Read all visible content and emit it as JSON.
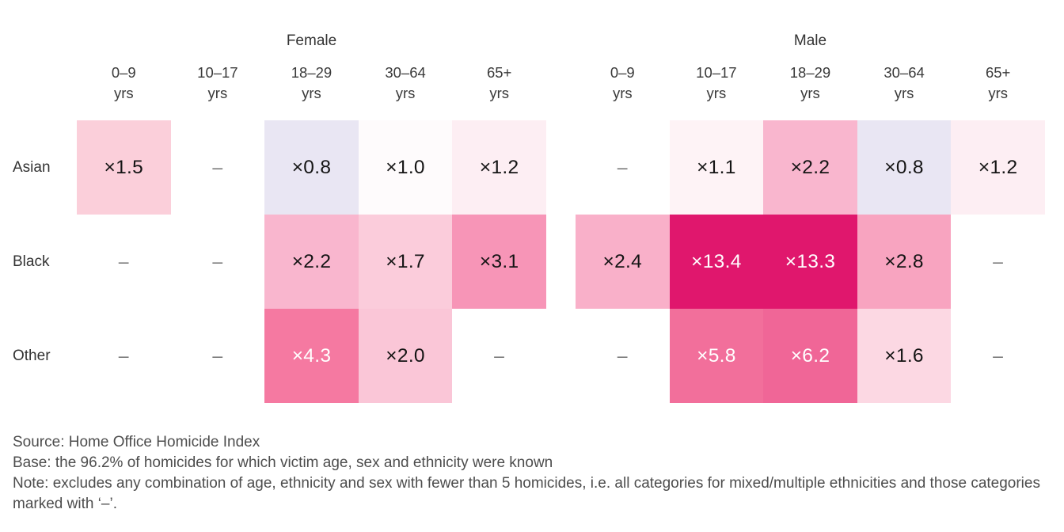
{
  "chart_data": {
    "type": "heatmap",
    "value_prefix": "×",
    "missing_marker": "–",
    "age_unit": "yrs",
    "row_categories": [
      "Asian",
      "Black",
      "Other"
    ],
    "white_text_min_value": 4.0,
    "column_groups": [
      {
        "label": "Female",
        "age_bands": [
          "0–9",
          "10–17",
          "18–29",
          "30–64",
          "65+"
        ],
        "rows": [
          {
            "ethnicity": "Asian",
            "values": [
              1.5,
              null,
              0.8,
              1.0,
              1.2
            ],
            "colors": [
              "#fbcfda",
              null,
              "#e9e6f3",
              "#fefbfc",
              "#fdeef3"
            ]
          },
          {
            "ethnicity": "Black",
            "values": [
              null,
              null,
              2.2,
              1.7,
              3.1
            ],
            "colors": [
              null,
              null,
              "#f9b6ce",
              "#fbccdb",
              "#f795b7"
            ]
          },
          {
            "ethnicity": "Other",
            "values": [
              null,
              null,
              4.3,
              2.0,
              null
            ],
            "colors": [
              null,
              null,
              "#f579a1",
              "#fac6d7",
              null
            ]
          }
        ]
      },
      {
        "label": "Male",
        "age_bands": [
          "0–9",
          "10–17",
          "18–29",
          "30–64",
          "65+"
        ],
        "rows": [
          {
            "ethnicity": "Asian",
            "values": [
              null,
              1.1,
              2.2,
              0.8,
              1.2
            ],
            "colors": [
              null,
              "#fef3f6",
              "#f9b6ce",
              "#e9e6f3",
              "#fdeef3"
            ]
          },
          {
            "ethnicity": "Black",
            "values": [
              2.4,
              13.4,
              13.3,
              2.8,
              null
            ],
            "colors": [
              "#f9b0c9",
              "#e0176d",
              "#e0176d",
              "#f8a4c0",
              null
            ]
          },
          {
            "ethnicity": "Other",
            "values": [
              null,
              5.8,
              6.2,
              1.6,
              null
            ],
            "colors": [
              null,
              "#f26f9b",
              "#f06697",
              "#fcd8e3",
              null
            ]
          }
        ]
      }
    ],
    "annotations": {
      "source": "Source: Home Office Homicide Index",
      "base": "Base: the 96.2% of homicides for which victim age, sex and ethnicity were known",
      "note": "Note: excludes any combination of age, ethnicity and sex with fewer than 5 homicides, i.e. all categories for mixed/multiple ethnicities and those categories marked with ‘–’."
    }
  }
}
